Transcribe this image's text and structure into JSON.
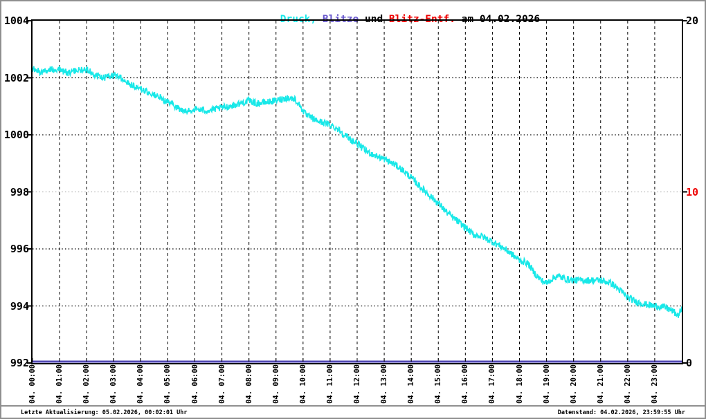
{
  "title": {
    "druck": "Druck,",
    "blitze": " Blitze",
    "und": " und ",
    "blitz_entf": "Blitz-Entf.",
    "date": " am 04.02.2026",
    "colors": {
      "druck": "#18E8E8",
      "blitze": "#6A5ACD",
      "und": "#000000",
      "blitz_entf": "#EE0000",
      "date": "#000000"
    }
  },
  "left_axis": {
    "ticks": [
      "1004",
      "1002",
      "1000",
      "998",
      "996",
      "994",
      "992"
    ]
  },
  "right_axis": {
    "ticks": [
      {
        "label": "20",
        "value": 20,
        "color": "#000000"
      },
      {
        "label": "10",
        "value": 10,
        "color": "#EE0000"
      },
      {
        "label": "0",
        "value": 0,
        "color": "#000000"
      }
    ]
  },
  "x_axis": {
    "labels": [
      "04. 00:00",
      "04. 01:00",
      "04. 02:00",
      "04. 03:00",
      "04. 04:00",
      "04. 05:00",
      "04. 06:00",
      "04. 07:00",
      "04. 08:00",
      "04. 09:00",
      "04. 10:00",
      "04. 11:00",
      "04. 12:00",
      "04. 13:00",
      "04. 14:00",
      "04. 15:00",
      "04. 16:00",
      "04. 17:00",
      "04. 18:00",
      "04. 19:00",
      "04. 20:00",
      "04. 21:00",
      "04. 22:00",
      "04. 23:00"
    ]
  },
  "footer": {
    "left": "Letzte Aktualisierung: 05.02.2026, 00:02:01 Uhr",
    "right": "Datenstand: 04.02.2026, 23:59:55 Uhr"
  },
  "chart_data": {
    "type": "line",
    "title": "Druck, Blitze und Blitz-Entf. am 04.02.2026",
    "x_range_hours": [
      0,
      24
    ],
    "left_ylim": [
      992,
      1004
    ],
    "right_ylim": [
      0,
      20
    ],
    "grid": true,
    "noise_amplitude_hPa": 0.12,
    "v_gridline_hours": [
      1,
      2,
      3,
      4,
      5,
      6,
      7,
      8,
      9,
      10,
      11,
      12,
      13,
      14,
      15,
      16,
      17,
      18,
      19,
      20,
      21,
      22,
      23
    ],
    "h_gridlines": [
      {
        "value": 1002,
        "color": "#000000"
      },
      {
        "value": 1000,
        "color": "#000000"
      },
      {
        "value": 998,
        "color": "#b4b4b4"
      },
      {
        "value": 996,
        "color": "#000000"
      },
      {
        "value": 994,
        "color": "#000000"
      }
    ],
    "series": [
      {
        "name": "Druck",
        "axis": "left",
        "color": "#18E8E8",
        "points": [
          [
            0,
            1002.3
          ],
          [
            0.3,
            1002.2
          ],
          [
            0.7,
            1002.3
          ],
          [
            1,
            1002.3
          ],
          [
            1.3,
            1002.15
          ],
          [
            1.6,
            1002.25
          ],
          [
            1.9,
            1002.3
          ],
          [
            2.1,
            1002.25
          ],
          [
            2.4,
            1002.05
          ],
          [
            2.7,
            1002.0
          ],
          [
            3,
            1002.1
          ],
          [
            3.2,
            1002.05
          ],
          [
            3.5,
            1001.85
          ],
          [
            3.8,
            1001.7
          ],
          [
            4,
            1001.6
          ],
          [
            4.5,
            1001.4
          ],
          [
            5,
            1001.15
          ],
          [
            5.3,
            1001.0
          ],
          [
            5.6,
            1000.8
          ],
          [
            6,
            1000.9
          ],
          [
            6.5,
            1000.85
          ],
          [
            7,
            1000.95
          ],
          [
            7.5,
            1001.05
          ],
          [
            8,
            1001.2
          ],
          [
            8.3,
            1001.1
          ],
          [
            8.7,
            1001.15
          ],
          [
            9,
            1001.2
          ],
          [
            9.4,
            1001.3
          ],
          [
            9.7,
            1001.25
          ],
          [
            9.9,
            1001.0
          ],
          [
            10.1,
            1000.7
          ],
          [
            10.5,
            1000.5
          ],
          [
            11,
            1000.35
          ],
          [
            11.3,
            1000.2
          ],
          [
            11.6,
            999.95
          ],
          [
            11.8,
            999.8
          ],
          [
            12,
            999.7
          ],
          [
            12.3,
            999.45
          ],
          [
            12.6,
            999.3
          ],
          [
            13,
            999.15
          ],
          [
            13.4,
            998.95
          ],
          [
            13.7,
            998.75
          ],
          [
            14,
            998.5
          ],
          [
            14.3,
            998.2
          ],
          [
            14.6,
            997.95
          ],
          [
            15,
            997.6
          ],
          [
            15.3,
            997.3
          ],
          [
            15.6,
            997.05
          ],
          [
            16,
            996.75
          ],
          [
            16.3,
            996.5
          ],
          [
            16.6,
            996.45
          ],
          [
            17,
            996.25
          ],
          [
            17.3,
            996.1
          ],
          [
            17.6,
            995.9
          ],
          [
            18,
            995.6
          ],
          [
            18.3,
            995.5
          ],
          [
            18.6,
            995.1
          ],
          [
            18.8,
            994.9
          ],
          [
            19,
            994.8
          ],
          [
            19.2,
            994.95
          ],
          [
            19.4,
            995.05
          ],
          [
            19.7,
            994.95
          ],
          [
            20,
            994.9
          ],
          [
            20.5,
            994.9
          ],
          [
            21,
            994.9
          ],
          [
            21.4,
            994.8
          ],
          [
            21.7,
            994.55
          ],
          [
            22,
            994.3
          ],
          [
            22.3,
            994.15
          ],
          [
            22.7,
            994.05
          ],
          [
            23,
            994.0
          ],
          [
            23.4,
            993.95
          ],
          [
            23.7,
            993.8
          ],
          [
            23.85,
            993.65
          ],
          [
            24,
            993.9
          ]
        ]
      },
      {
        "name": "Blitze",
        "axis": "right",
        "color": "#5248B4",
        "points": [
          [
            0,
            0
          ],
          [
            24,
            0
          ]
        ]
      },
      {
        "name": "Blitz-Entf.",
        "axis": "right",
        "color": "#EE0000",
        "points": []
      }
    ]
  }
}
